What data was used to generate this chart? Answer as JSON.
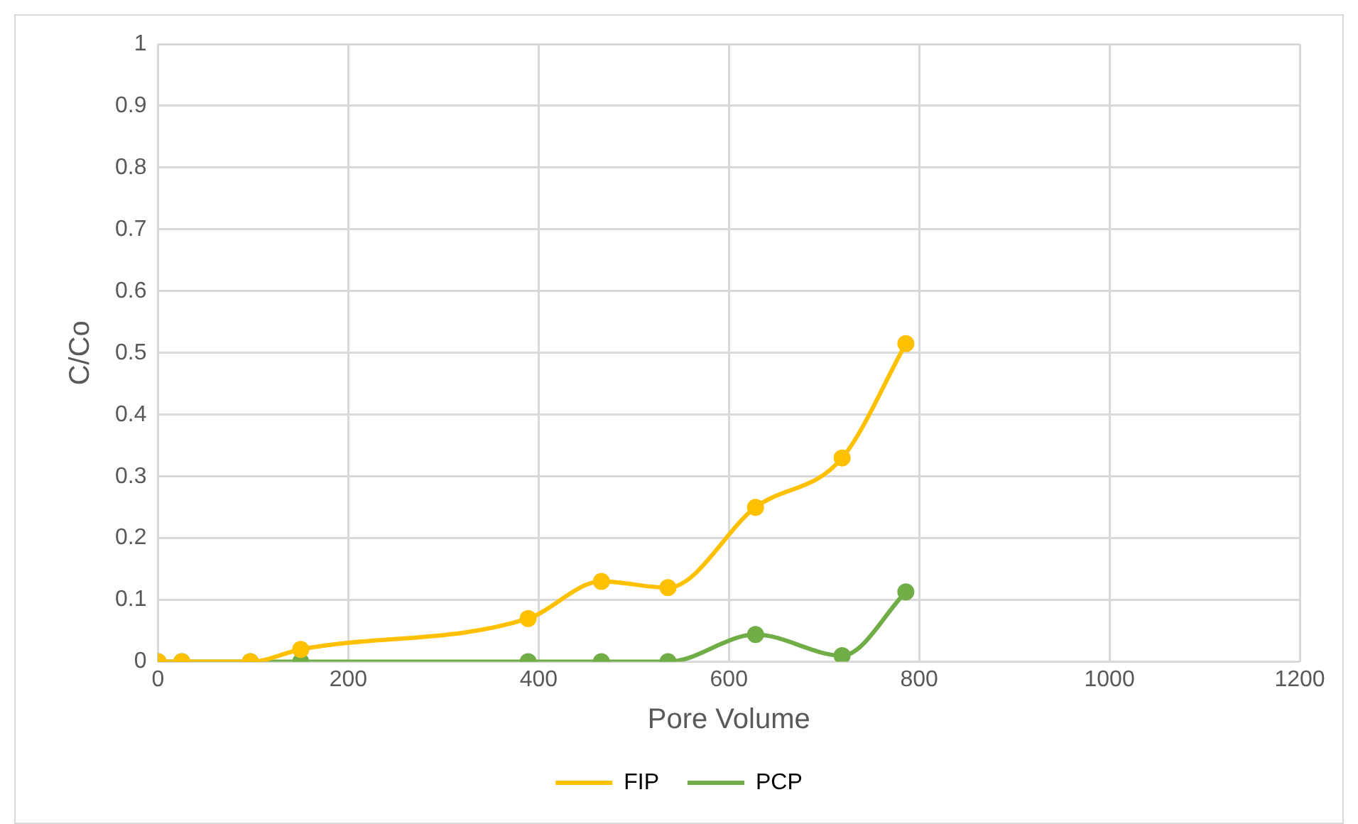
{
  "chart_data": {
    "type": "line",
    "xlabel": "Pore Volume",
    "ylabel": "C/Co",
    "x": [
      0,
      25,
      97,
      150,
      389,
      466,
      536,
      628,
      719,
      786
    ],
    "series": [
      {
        "name": "FIP",
        "color": "#ffc000",
        "values": [
          0,
          0,
          0,
          0.02,
          0.07,
          0.13,
          0.12,
          0.25,
          0.33,
          0.515
        ]
      },
      {
        "name": "PCP",
        "color": "#70ad47",
        "values": [
          0,
          0,
          0,
          0,
          0,
          0,
          0,
          0.044,
          0.01,
          0.113
        ]
      }
    ],
    "xlim": [
      0,
      1200
    ],
    "xticks": [
      0,
      200,
      400,
      600,
      800,
      1000,
      1200
    ],
    "ylim": [
      0,
      1
    ],
    "yticks": [
      0,
      0.1,
      0.2,
      0.3,
      0.4,
      0.5,
      0.6,
      0.7,
      0.8,
      0.9,
      1
    ],
    "grid": true,
    "legend": "bottom",
    "marker": "circle",
    "line_style": "solid"
  }
}
